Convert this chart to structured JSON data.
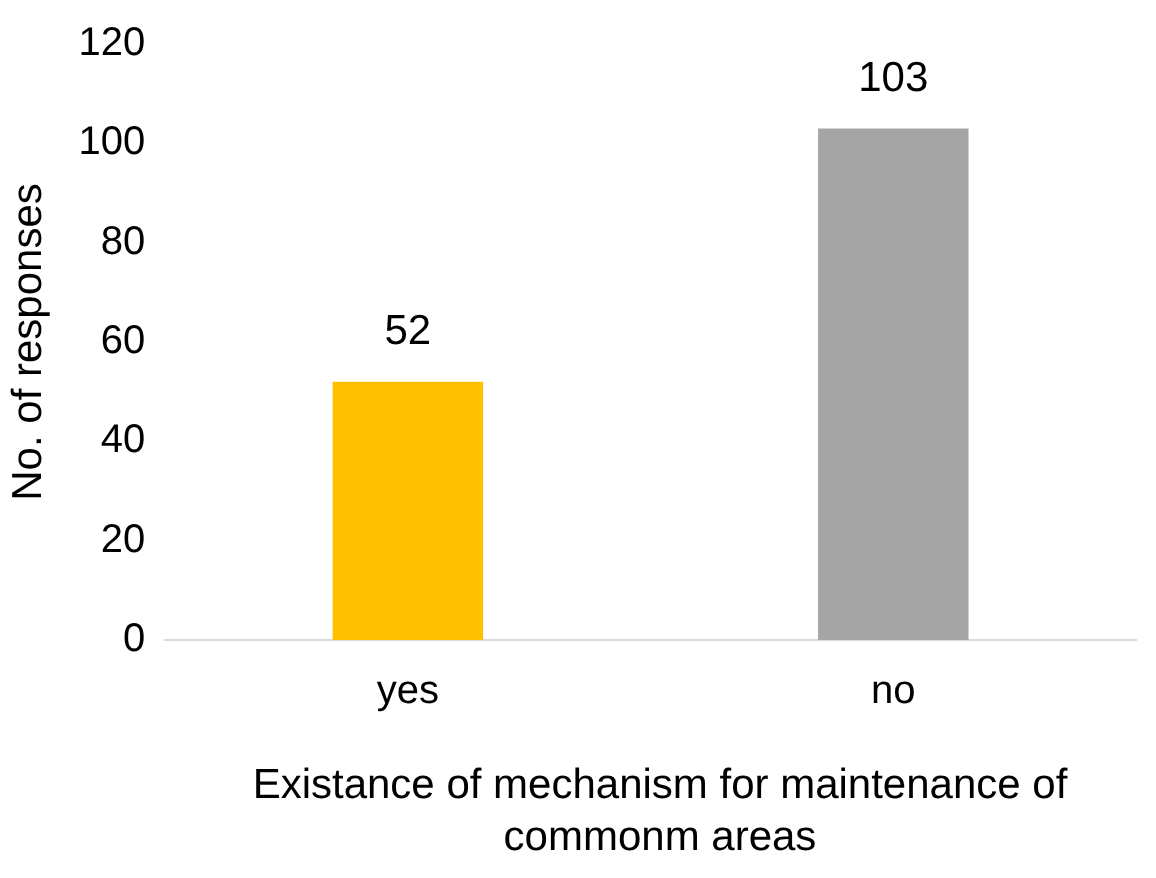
{
  "chart_data": {
    "type": "bar",
    "xlabel": "Existance of mechanism for maintenance of commonm areas",
    "ylabel": "No. of responses",
    "categories": [
      "yes",
      "no"
    ],
    "values": [
      52,
      103
    ],
    "colors": [
      "#ffc000",
      "#a5a5a5"
    ],
    "ylim": [
      0,
      120
    ],
    "yticks": [
      0,
      20,
      40,
      60,
      80,
      100,
      120
    ],
    "grid": false,
    "legend": false,
    "data_labels": true
  }
}
